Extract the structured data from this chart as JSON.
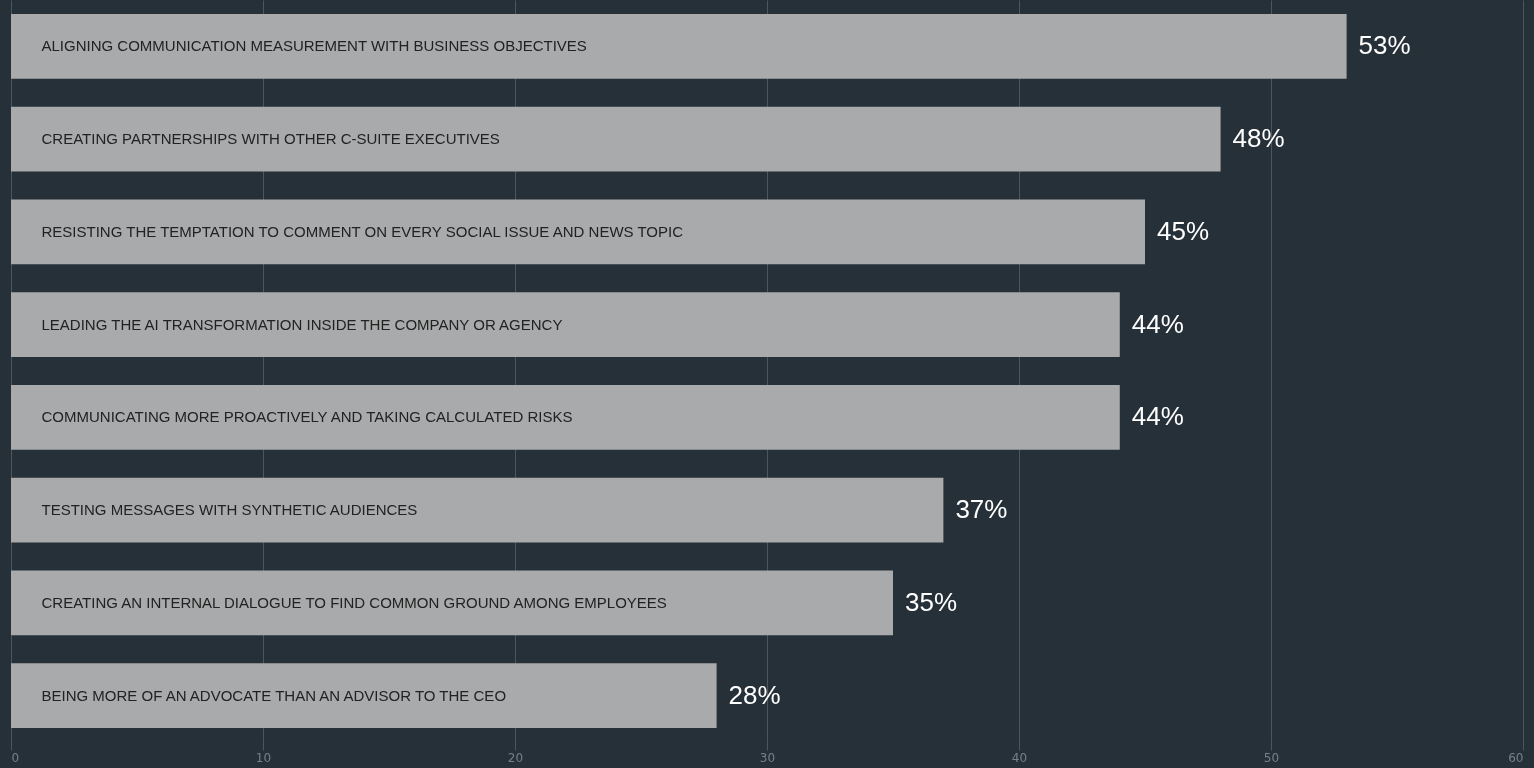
{
  "chart_data": {
    "type": "bar",
    "orientation": "horizontal",
    "categories": [
      "ALIGNING COMMUNICATION MEASUREMENT WITH BUSINESS OBJECTIVES",
      "CREATING PARTNERSHIPS WITH OTHER C-SUITE EXECUTIVES",
      "RESISTING THE TEMPTATION TO COMMENT ON EVERY SOCIAL ISSUE AND NEWS TOPIC",
      "LEADING THE AI TRANSFORMATION INSIDE THE COMPANY OR AGENCY",
      "COMMUNICATING MORE PROACTIVELY AND TAKING CALCULATED RISKS",
      "TESTING MESSAGES WITH SYNTHETIC AUDIENCES",
      "CREATING AN INTERNAL DIALOGUE TO FIND COMMON GROUND AMONG EMPLOYEES",
      "BEING MORE OF AN ADVOCATE THAN AN ADVISOR TO THE CEO"
    ],
    "values": [
      53,
      48,
      45,
      44,
      44,
      37,
      35,
      28
    ],
    "value_labels": [
      "53%",
      "48%",
      "45%",
      "44%",
      "44%",
      "37%",
      "35%",
      "28%"
    ],
    "color": "#a9aaab",
    "xlim": [
      0,
      60
    ],
    "xticks": [
      0,
      10,
      20,
      30,
      40,
      50,
      60
    ],
    "grid": "x"
  }
}
